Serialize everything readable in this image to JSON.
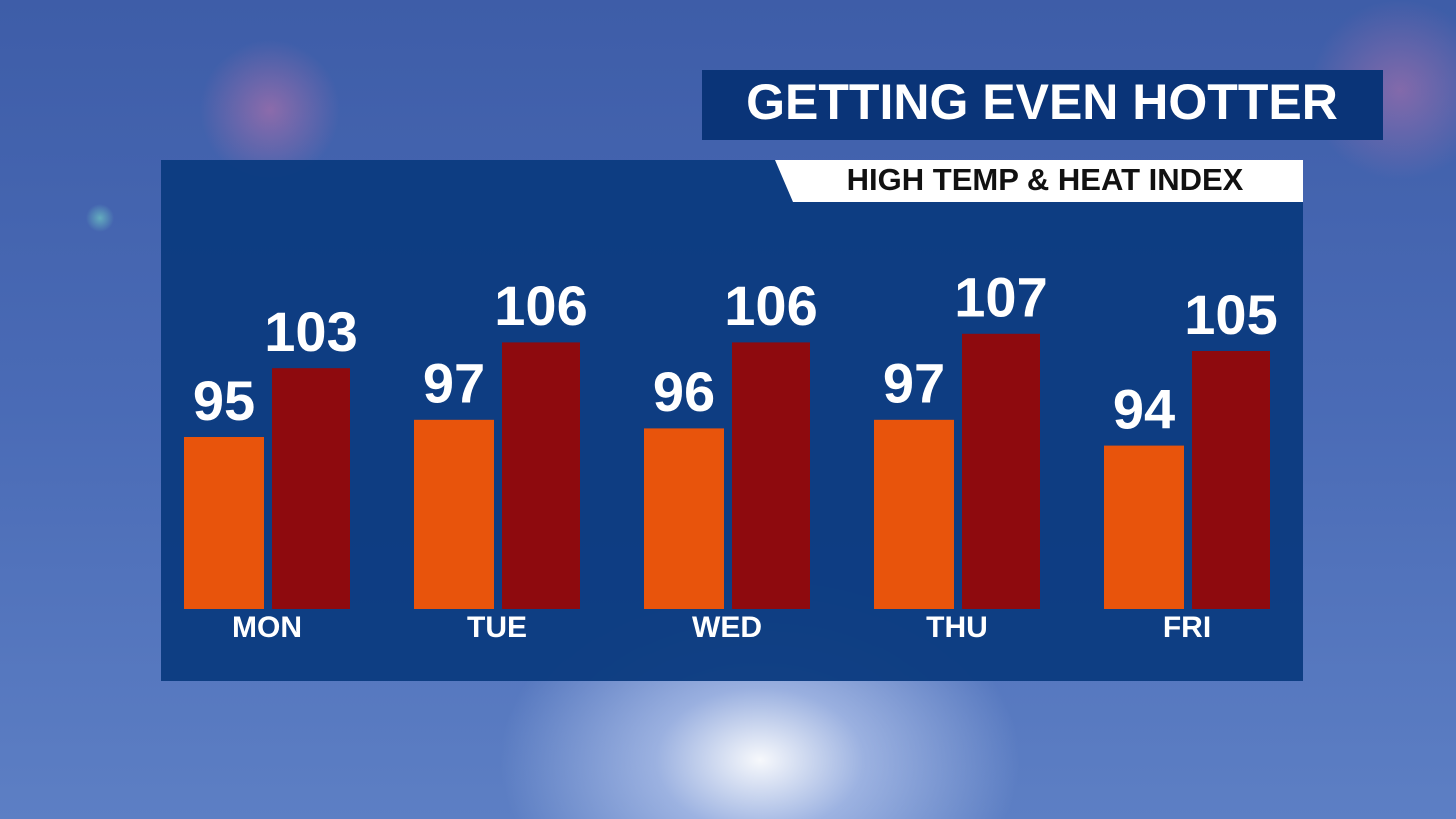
{
  "chart_data": {
    "type": "bar",
    "title": "GETTING EVEN HOTTER",
    "subtitle": "HIGH TEMP & HEAT INDEX",
    "categories": [
      "MON",
      "TUE",
      "WED",
      "THU",
      "FRI"
    ],
    "series": [
      {
        "color": "#e8540c",
        "values": [
          95,
          97,
          96,
          97,
          94
        ]
      },
      {
        "color": "#8e0a0e",
        "values": [
          103,
          106,
          106,
          107,
          105
        ]
      }
    ],
    "ylim": [
      75,
      110
    ]
  }
}
